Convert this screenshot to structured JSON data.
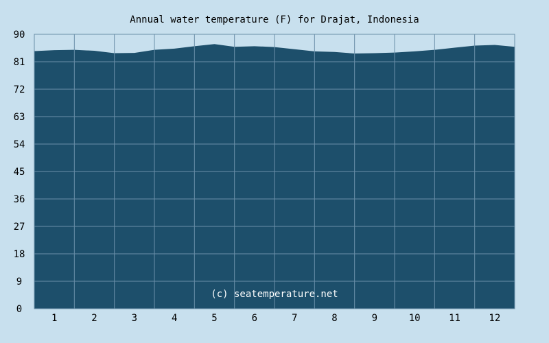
{
  "chart_data": {
    "type": "area",
    "title": "Annual water temperature (F) for Drajat, Indonesia",
    "xlabel": "",
    "ylabel": "",
    "ylim": [
      0,
      90
    ],
    "yticks": [
      "0",
      "9",
      "18",
      "27",
      "36",
      "45",
      "54",
      "63",
      "72",
      "81",
      "90"
    ],
    "xticks": [
      "1",
      "2",
      "3",
      "4",
      "5",
      "6",
      "7",
      "8",
      "9",
      "10",
      "11",
      "12"
    ],
    "grid": true,
    "legend": "none",
    "watermark": "(c) seatemperature.net",
    "series": [
      {
        "color": "#1d4f6b",
        "x": [
          0,
          0.5,
          1,
          1.5,
          2,
          2.5,
          3,
          3.5,
          4,
          4.5,
          5,
          5.5,
          6,
          6.5,
          7,
          7.5,
          8,
          8.5,
          9,
          9.5,
          10,
          10.5,
          11,
          11.5,
          12
        ],
        "values": [
          84.5,
          84.8,
          84.9,
          84.6,
          83.8,
          83.9,
          84.9,
          85.3,
          86.1,
          86.8,
          85.9,
          86.1,
          85.8,
          85.1,
          84.4,
          84.2,
          83.7,
          83.8,
          84.0,
          84.4,
          84.9,
          85.6,
          86.3,
          86.5,
          85.9
        ]
      }
    ],
    "colors": {
      "background": "#c8e0ee",
      "plot": "#1d4f6b",
      "grid": "#6a8fa8",
      "border": "#6a8fa8",
      "text": "#000000",
      "watermark": "#ffffff"
    }
  }
}
